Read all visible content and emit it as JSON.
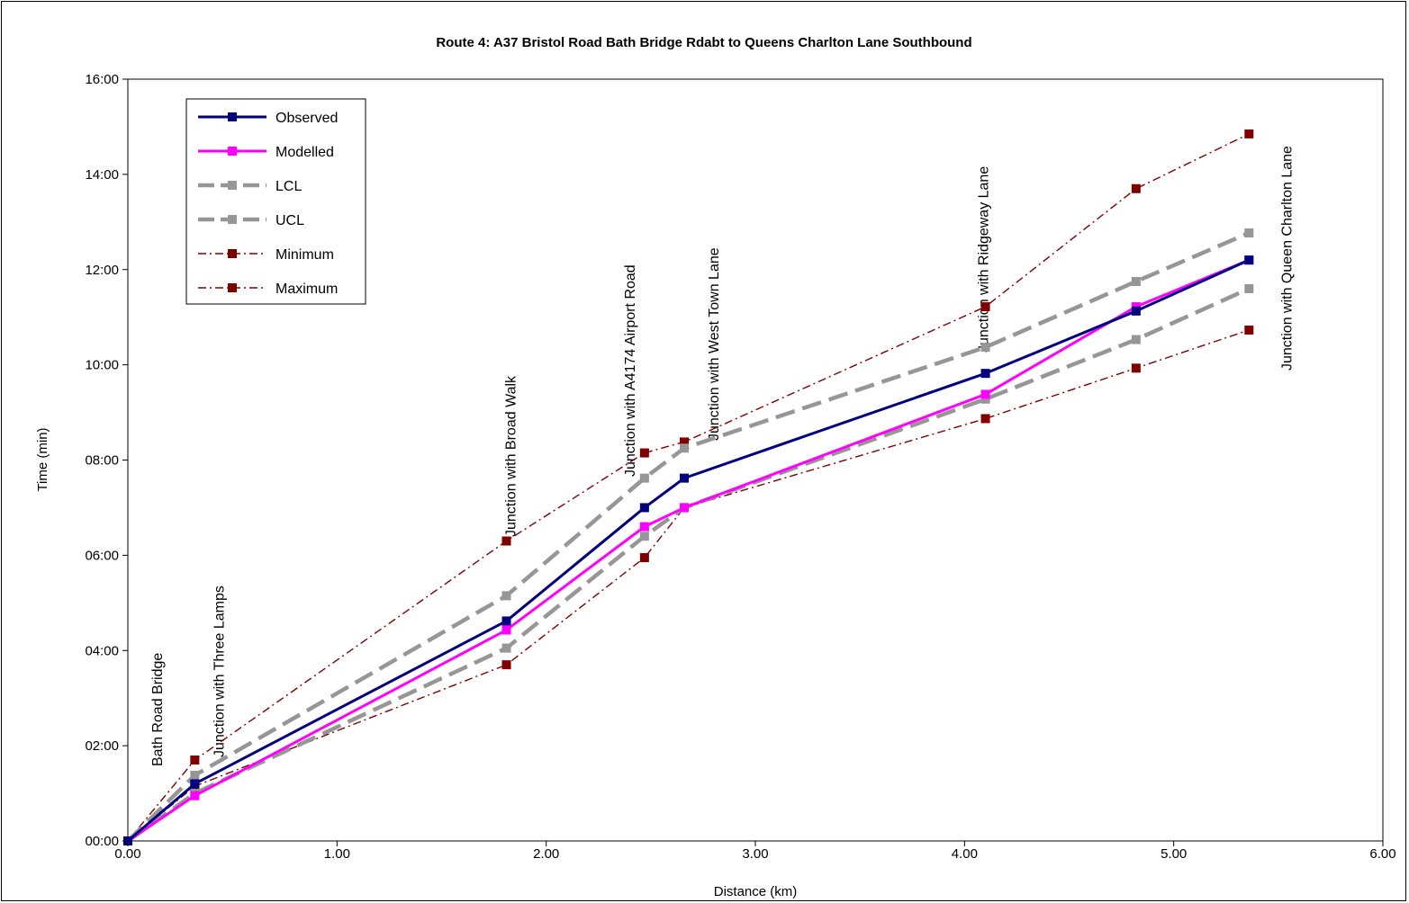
{
  "chart_data": {
    "type": "line",
    "title": "Route 4: A37 Bristol Road Bath Bridge Rdabt to Queens Charlton Lane Southbound",
    "xlabel": "Distance (km)",
    "ylabel": "Time (min)",
    "xlim": [
      0,
      6
    ],
    "ylim_minutes": [
      0,
      16
    ],
    "x_ticks": [
      0,
      1,
      2,
      3,
      4,
      5,
      6
    ],
    "x_tick_labels": [
      "0.00",
      "1.00",
      "2.00",
      "3.00",
      "4.00",
      "5.00",
      "6.00"
    ],
    "y_ticks_minutes": [
      0,
      2,
      4,
      6,
      8,
      10,
      12,
      14,
      16
    ],
    "y_tick_labels": [
      "00:00",
      "02:00",
      "04:00",
      "06:00",
      "08:00",
      "10:00",
      "12:00",
      "14:00",
      "16:00"
    ],
    "grid": false,
    "legend_position": "top-left",
    "x": [
      0.0,
      0.32,
      1.81,
      2.47,
      2.66,
      4.1,
      4.82,
      5.36
    ],
    "series": [
      {
        "name": "Observed",
        "color": "#000080",
        "style": "solid",
        "values": [
          0.0,
          1.2,
          4.62,
          7.0,
          7.62,
          9.82,
          11.13,
          12.2
        ]
      },
      {
        "name": "Modelled",
        "color": "#ff00ff",
        "style": "solid",
        "values": [
          0.0,
          0.95,
          4.43,
          6.6,
          7.0,
          9.38,
          11.22,
          12.2
        ]
      },
      {
        "name": "LCL",
        "color": "#969696",
        "style": "dash",
        "values": [
          0.0,
          1.0,
          4.05,
          6.4,
          7.0,
          9.28,
          10.53,
          11.6
        ]
      },
      {
        "name": "UCL",
        "color": "#969696",
        "style": "dash",
        "values": [
          0.0,
          1.38,
          5.15,
          7.62,
          8.25,
          10.37,
          11.75,
          12.77
        ]
      },
      {
        "name": "Minimum",
        "color": "#800000",
        "style": "dashdot",
        "values": [
          0.0,
          1.15,
          3.7,
          5.95,
          7.0,
          8.87,
          9.93,
          10.73
        ]
      },
      {
        "name": "Maximum",
        "color": "#800000",
        "style": "dashdot",
        "values": [
          0.0,
          1.7,
          6.3,
          8.15,
          8.38,
          11.22,
          13.7,
          14.85
        ]
      }
    ],
    "annotations": [
      {
        "text": "Bath Road Bridge",
        "x": 0.0
      },
      {
        "text": "Junction with Three Lamps",
        "x": 0.32
      },
      {
        "text": "Junction with Broad Walk",
        "x": 1.81
      },
      {
        "text": "Junction with A4174 Airport Road",
        "x": 2.47
      },
      {
        "text": "Junction with West Town Lane",
        "x": 2.66
      },
      {
        "text": "Junction with Ridgeway Lane",
        "x": 4.1
      },
      {
        "text": "Junction with Queen Charlton Lane",
        "x": 5.36
      }
    ]
  }
}
